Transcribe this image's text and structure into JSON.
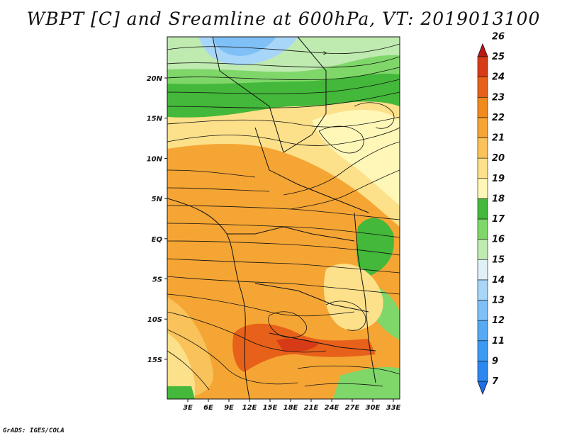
{
  "title": "WBPT [C] and Sreamline at 600hPa, VT: 2019013100",
  "footer": "GrADS: IGES/COLA",
  "map": {
    "lon_ticks": [
      "3E",
      "6E",
      "9E",
      "12E",
      "15E",
      "18E",
      "21E",
      "24E",
      "27E",
      "30E",
      "33E"
    ],
    "lat_ticks": [
      "20N",
      "15N",
      "10N",
      "5N",
      "EQ",
      "5S",
      "10S",
      "15S"
    ]
  },
  "colorbar": {
    "levels": [
      "7",
      "9",
      "11",
      "12",
      "13",
      "14",
      "15",
      "16",
      "17",
      "18",
      "19",
      "20",
      "21",
      "22",
      "23",
      "24",
      "25",
      "26"
    ],
    "colors": [
      "#1e6fe6",
      "#2c87f0",
      "#3d9af2",
      "#55aaf3",
      "#7fc0f6",
      "#a8d6f8",
      "#dff1f7",
      "#bfeab0",
      "#7fd76a",
      "#43b83a",
      "#fff7b8",
      "#fde08a",
      "#f9c25a",
      "#f5a534",
      "#f08a1d",
      "#e8611a",
      "#d63a17",
      "#b81713"
    ]
  }
}
